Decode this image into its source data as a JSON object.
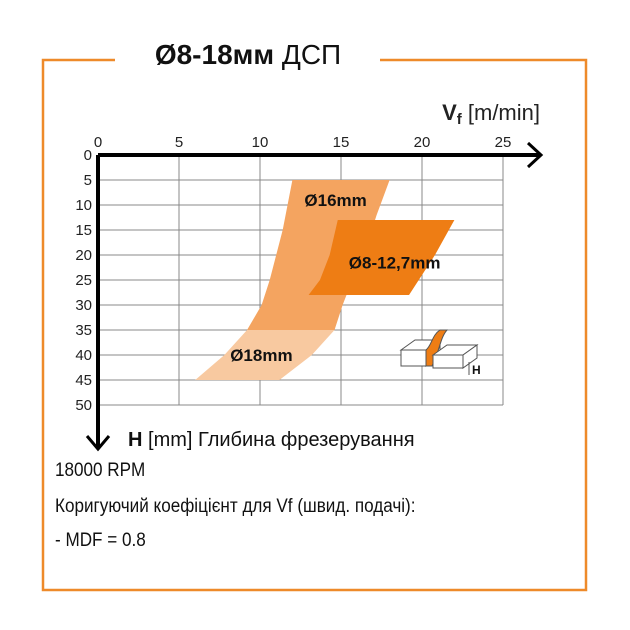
{
  "title_bold": "Ø8-18мм",
  "title_rest": "ДСП",
  "chart_data": {
    "type": "area",
    "x_axis": {
      "label_main": "V",
      "label_sub": "f",
      "label_unit": "[m/min]",
      "range": [
        0,
        25
      ],
      "ticks": [
        0,
        5,
        10,
        15,
        20,
        25
      ],
      "position": "top"
    },
    "y_axis": {
      "label_main": "H",
      "label_rest": "[mm] Глибина фрезерування",
      "range": [
        0,
        50
      ],
      "ticks": [
        0,
        5,
        10,
        15,
        20,
        25,
        30,
        35,
        40,
        45,
        50
      ],
      "inverted": true
    },
    "grid": true,
    "regions": [
      {
        "name": "Ø16mm",
        "color": "#f4a460",
        "left": [
          [
            12,
            5
          ],
          [
            11.7,
            10
          ],
          [
            11.4,
            15
          ],
          [
            11,
            20
          ],
          [
            10.6,
            25
          ],
          [
            10.1,
            30
          ],
          [
            9.2,
            35
          ]
        ],
        "right": [
          [
            18,
            5
          ],
          [
            17.2,
            12
          ],
          [
            16.4,
            20
          ],
          [
            15.7,
            25
          ],
          [
            15.1,
            30
          ],
          [
            14.6,
            35
          ]
        ]
      },
      {
        "name": "Ø18mm",
        "color": "#f8c9a0",
        "left": [
          [
            9.2,
            35
          ],
          [
            7.8,
            40
          ],
          [
            6,
            45
          ]
        ],
        "right": [
          [
            14.6,
            35
          ],
          [
            13.2,
            40
          ],
          [
            11.2,
            45
          ]
        ]
      },
      {
        "name": "Ø8-12,7mm",
        "color": "#ee7d14",
        "left": [
          [
            14.8,
            13
          ],
          [
            14.3,
            20
          ],
          [
            13.7,
            25
          ],
          [
            13,
            28
          ]
        ],
        "right": [
          [
            22,
            13
          ],
          [
            20.8,
            20
          ],
          [
            19.8,
            25
          ],
          [
            19.2,
            28
          ]
        ]
      }
    ],
    "icon_label": "H"
  },
  "notes": {
    "rpm": "18000 RPM",
    "coef": "Коригуючий коефіцієнт для Vf (швид. подачі):",
    "mdf": "- MDF = 0.8"
  },
  "colors": {
    "frame": "#ee8a2a",
    "accent": "#ee7d14"
  }
}
